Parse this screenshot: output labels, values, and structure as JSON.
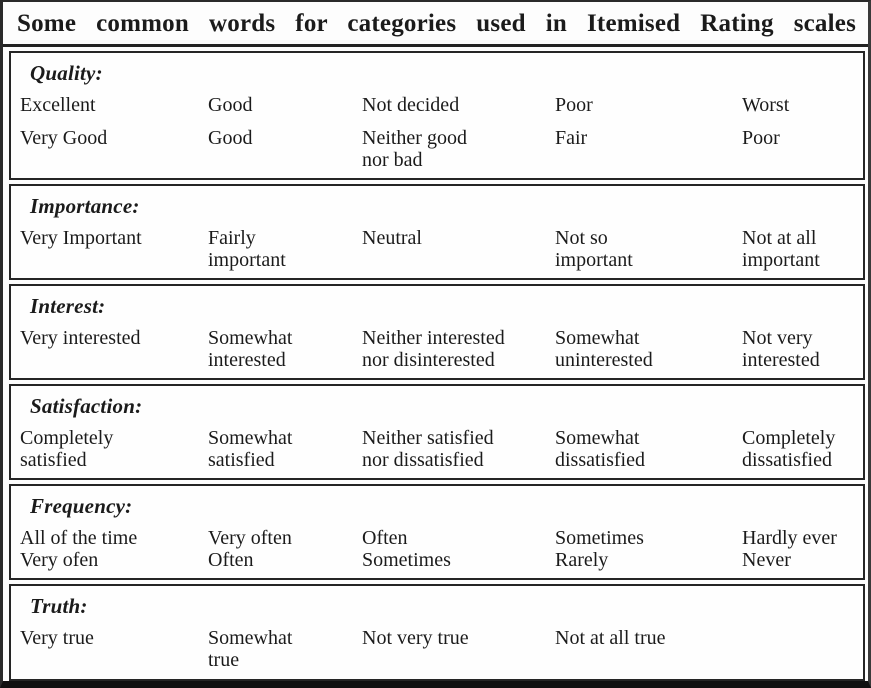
{
  "title": "Some common words for categories used in Itemised Rating scales",
  "colors": {
    "text": "#1b1b1b",
    "border": "#252525",
    "background": "#fdfdfd"
  },
  "sections": [
    {
      "heading": "Quality:",
      "rows": [
        {
          "cells": [
            "Excellent",
            "Good",
            "Not decided",
            "Poor",
            "Worst"
          ]
        },
        {
          "cells": [
            "Very Good",
            "Good",
            "Neither good\nnor bad",
            "Fair",
            "Poor"
          ]
        }
      ]
    },
    {
      "heading": "Importance:",
      "rows": [
        {
          "cells": [
            "Very Important",
            "Fairly\nimportant",
            "Neutral",
            "Not so\nimportant",
            "Not at all\nimportant"
          ]
        }
      ]
    },
    {
      "heading": "Interest:",
      "rows": [
        {
          "cells": [
            "Very interested",
            "Somewhat\ninterested",
            "Neither interested\nnor disinterested",
            "Somewhat\nuninterested",
            "Not very\ninterested"
          ]
        }
      ]
    },
    {
      "heading": "Satisfaction:",
      "rows": [
        {
          "cells": [
            "Completely\nsatisfied",
            "Somewhat\nsatisfied",
            "Neither satisfied\nnor dissatisfied",
            "Somewhat\ndissatisfied",
            "Completely\ndissatisfied"
          ]
        }
      ]
    },
    {
      "heading": "Frequency:",
      "rows": [
        {
          "cells": [
            "All of the time",
            "Very often",
            "Often",
            "Sometimes",
            "Hardly ever"
          ]
        },
        {
          "cells": [
            "Very ofen",
            "Often",
            "Sometimes",
            "Rarely",
            "Never"
          ]
        }
      ]
    },
    {
      "heading": "Truth:",
      "rows": [
        {
          "cells": [
            "Very true",
            "Somewhat\ntrue",
            "Not very true",
            "Not at all true",
            ""
          ]
        }
      ]
    }
  ]
}
